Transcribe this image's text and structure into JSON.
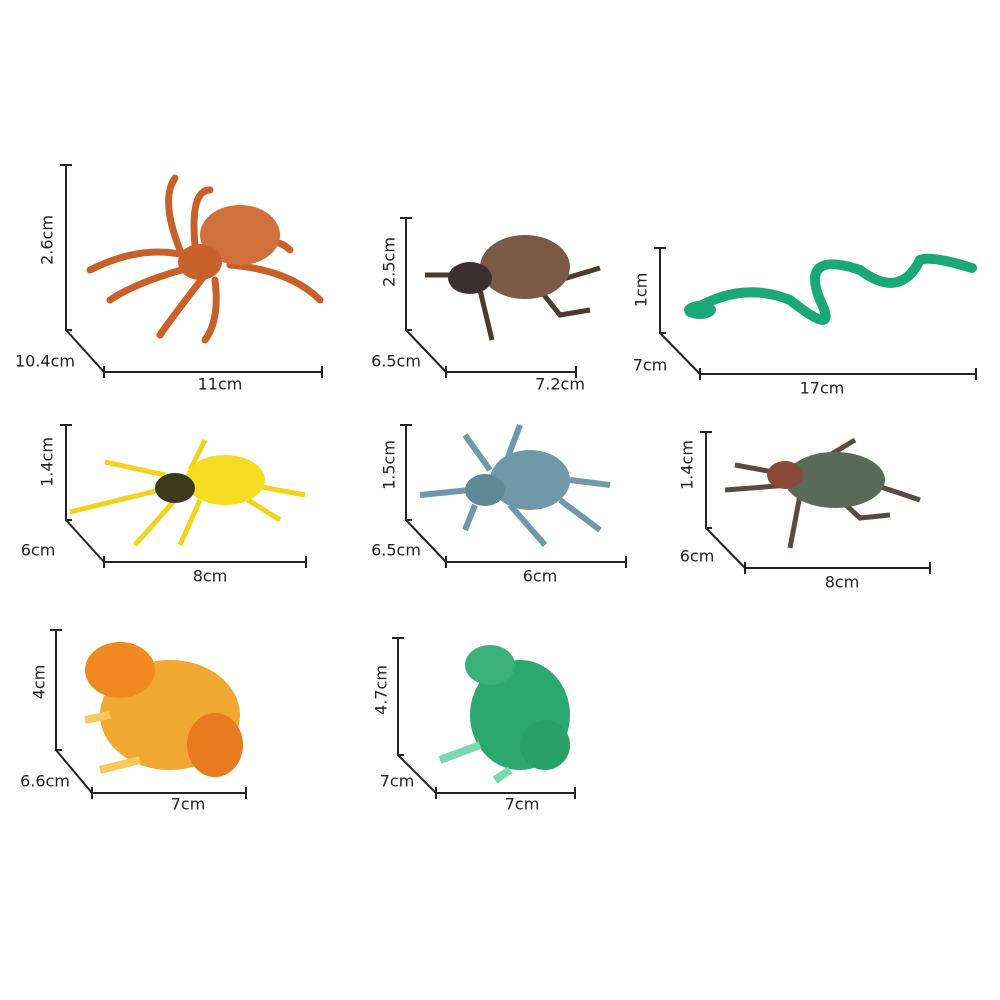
{
  "items": [
    {
      "height": "2.6cm",
      "depth": "10.4cm",
      "width": "11cm"
    },
    {
      "height": "2.5cm",
      "depth": "6.5cm",
      "width": "7.2cm"
    },
    {
      "height": "1cm",
      "depth": "7cm",
      "width": "17cm"
    },
    {
      "height": "1.4cm",
      "depth": "6cm",
      "width": "8cm"
    },
    {
      "height": "1.5cm",
      "depth": "6.5cm",
      "width": "6cm"
    },
    {
      "height": "1.4cm",
      "depth": "6cm",
      "width": "8cm"
    },
    {
      "height": "4cm",
      "depth": "6.6cm",
      "width": "7cm"
    },
    {
      "height": "4.7cm",
      "depth": "7cm",
      "width": "7cm"
    }
  ]
}
